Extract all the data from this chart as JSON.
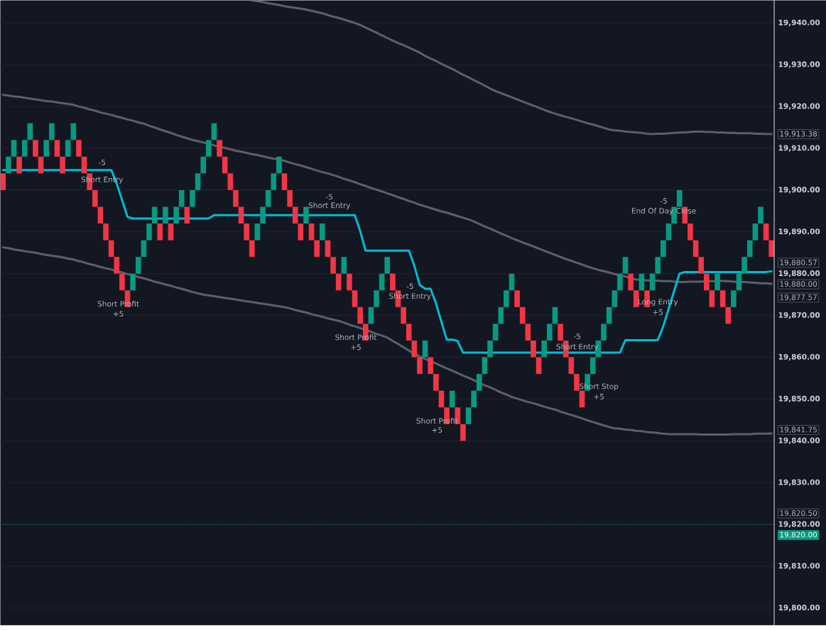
{
  "chart_data": {
    "type": "candlestick",
    "categories": [
      null,
      null,
      null,
      null,
      null,
      null,
      null,
      null,
      null,
      null,
      null,
      null,
      null,
      null,
      null,
      null,
      null,
      null,
      null,
      null,
      null,
      null,
      null,
      null,
      null,
      null,
      null,
      null,
      null,
      null,
      null,
      null,
      null,
      null,
      null,
      null,
      null,
      null,
      null,
      null,
      null,
      null,
      null,
      null,
      null,
      null,
      null,
      null,
      null,
      null,
      null,
      null,
      null,
      null,
      null,
      null,
      null,
      null,
      null,
      null,
      null,
      null,
      null,
      null,
      null,
      null,
      null,
      null,
      null,
      null,
      null,
      null,
      null,
      null,
      null,
      null,
      null,
      null,
      null,
      null,
      null,
      null,
      null,
      null,
      null,
      null,
      null,
      null,
      null,
      null,
      null,
      null,
      null,
      null,
      null,
      null,
      null,
      null,
      null,
      null,
      null,
      null,
      null,
      null,
      null,
      null,
      null,
      null,
      null,
      null,
      null,
      null,
      null,
      null,
      null,
      null,
      null,
      null,
      null,
      null,
      null,
      null,
      null,
      null,
      null,
      null,
      null,
      null,
      null,
      null,
      null,
      null,
      null,
      null,
      null,
      null,
      null,
      null,
      null,
      null,
      null,
      null,
      null
    ],
    "ohlc": [
      [
        19904,
        19904,
        19900,
        19900
      ],
      [
        19904,
        19908,
        19904,
        19908
      ],
      [
        19908,
        19912,
        19908,
        19912
      ],
      [
        19908,
        19908,
        19904,
        19904
      ],
      [
        19908,
        19912,
        19908,
        19912
      ],
      [
        19912,
        19916,
        19912,
        19916
      ],
      [
        19912,
        19912,
        19908,
        19908
      ],
      [
        19908,
        19908,
        19904,
        19904
      ],
      [
        19908,
        19912,
        19908,
        19912
      ],
      [
        19912,
        19916,
        19912,
        19916
      ],
      [
        19912,
        19912,
        19908,
        19908
      ],
      [
        19908,
        19908,
        19904,
        19904
      ],
      [
        19908,
        19912,
        19908,
        19912
      ],
      [
        19912,
        19916,
        19912,
        19916
      ],
      [
        19912,
        19912,
        19908,
        19908
      ],
      [
        19908,
        19908,
        19904,
        19904
      ],
      [
        19904,
        19904,
        19900,
        19900
      ],
      [
        19900,
        19900,
        19896,
        19896
      ],
      [
        19896,
        19896,
        19892,
        19892
      ],
      [
        19892,
        19892,
        19888,
        19888
      ],
      [
        19888,
        19888,
        19884,
        19884
      ],
      [
        19884,
        19884,
        19880,
        19880
      ],
      [
        19880,
        19880,
        19876,
        19876
      ],
      [
        19876,
        19876,
        19872,
        19872
      ],
      [
        19876,
        19880,
        19876,
        19880
      ],
      [
        19880,
        19884,
        19880,
        19884
      ],
      [
        19884,
        19888,
        19884,
        19888
      ],
      [
        19888,
        19892,
        19888,
        19892
      ],
      [
        19892,
        19896,
        19892,
        19896
      ],
      [
        19892,
        19892,
        19888,
        19888
      ],
      [
        19892,
        19896,
        19892,
        19896
      ],
      [
        19892,
        19892,
        19888,
        19888
      ],
      [
        19892,
        19896,
        19892,
        19896
      ],
      [
        19896,
        19900,
        19896,
        19900
      ],
      [
        19896,
        19896,
        19892,
        19892
      ],
      [
        19896,
        19900,
        19896,
        19900
      ],
      [
        19900,
        19904,
        19900,
        19904
      ],
      [
        19904,
        19908,
        19904,
        19908
      ],
      [
        19908,
        19912,
        19908,
        19912
      ],
      [
        19912,
        19916,
        19912,
        19916
      ],
      [
        19912,
        19912,
        19908,
        19908
      ],
      [
        19908,
        19908,
        19904,
        19904
      ],
      [
        19904,
        19904,
        19900,
        19900
      ],
      [
        19900,
        19900,
        19896,
        19896
      ],
      [
        19896,
        19896,
        19892,
        19892
      ],
      [
        19892,
        19892,
        19888,
        19888
      ],
      [
        19888,
        19888,
        19884,
        19884
      ],
      [
        19888,
        19892,
        19888,
        19892
      ],
      [
        19892,
        19896,
        19892,
        19896
      ],
      [
        19896,
        19900,
        19896,
        19900
      ],
      [
        19900,
        19904,
        19900,
        19904
      ],
      [
        19904,
        19908,
        19904,
        19908
      ],
      [
        19904,
        19904,
        19900,
        19900
      ],
      [
        19900,
        19900,
        19896,
        19896
      ],
      [
        19896,
        19896,
        19892,
        19892
      ],
      [
        19892,
        19892,
        19888,
        19888
      ],
      [
        19892,
        19896,
        19892,
        19896
      ],
      [
        19892,
        19892,
        19888,
        19888
      ],
      [
        19888,
        19888,
        19884,
        19884
      ],
      [
        19888,
        19892,
        19888,
        19892
      ],
      [
        19888,
        19888,
        19884,
        19884
      ],
      [
        19884,
        19884,
        19880,
        19880
      ],
      [
        19880,
        19880,
        19876,
        19876
      ],
      [
        19880,
        19884,
        19880,
        19884
      ],
      [
        19880,
        19880,
        19876,
        19876
      ],
      [
        19876,
        19876,
        19872,
        19872
      ],
      [
        19872,
        19872,
        19868,
        19868
      ],
      [
        19868,
        19868,
        19864,
        19864
      ],
      [
        19868,
        19872,
        19868,
        19872
      ],
      [
        19872,
        19876,
        19872,
        19876
      ],
      [
        19876,
        19880,
        19876,
        19880
      ],
      [
        19880,
        19884,
        19880,
        19884
      ],
      [
        19880,
        19880,
        19876,
        19876
      ],
      [
        19876,
        19876,
        19872,
        19872
      ],
      [
        19872,
        19872,
        19868,
        19868
      ],
      [
        19868,
        19868,
        19864,
        19864
      ],
      [
        19864,
        19864,
        19860,
        19860
      ],
      [
        19860,
        19860,
        19856,
        19856
      ],
      [
        19860,
        19864,
        19860,
        19864
      ],
      [
        19860,
        19860,
        19856,
        19856
      ],
      [
        19856,
        19856,
        19852,
        19852
      ],
      [
        19852,
        19852,
        19848,
        19848
      ],
      [
        19848,
        19848,
        19844,
        19844
      ],
      [
        19848,
        19852,
        19848,
        19852
      ],
      [
        19848,
        19848,
        19844,
        19844
      ],
      [
        19844,
        19844,
        19840,
        19840
      ],
      [
        19844,
        19848,
        19844,
        19848
      ],
      [
        19848,
        19852,
        19848,
        19852
      ],
      [
        19852,
        19856,
        19852,
        19856
      ],
      [
        19856,
        19860,
        19856,
        19860
      ],
      [
        19860,
        19864,
        19860,
        19864
      ],
      [
        19864,
        19868,
        19864,
        19868
      ],
      [
        19868,
        19872,
        19868,
        19872
      ],
      [
        19872,
        19876,
        19872,
        19876
      ],
      [
        19876,
        19880,
        19876,
        19880
      ],
      [
        19876,
        19876,
        19872,
        19872
      ],
      [
        19872,
        19872,
        19868,
        19868
      ],
      [
        19868,
        19868,
        19864,
        19864
      ],
      [
        19864,
        19864,
        19860,
        19860
      ],
      [
        19860,
        19860,
        19856,
        19856
      ],
      [
        19860,
        19864,
        19860,
        19864
      ],
      [
        19864,
        19868,
        19864,
        19868
      ],
      [
        19868,
        19872,
        19868,
        19872
      ],
      [
        19868,
        19868,
        19864,
        19864
      ],
      [
        19864,
        19864,
        19860,
        19860
      ],
      [
        19860,
        19860,
        19856,
        19856
      ],
      [
        19856,
        19856,
        19852,
        19852
      ],
      [
        19852,
        19852,
        19848,
        19848
      ],
      [
        19852,
        19856,
        19852,
        19856
      ],
      [
        19856,
        19860,
        19856,
        19860
      ],
      [
        19860,
        19864,
        19860,
        19864
      ],
      [
        19864,
        19868,
        19864,
        19868
      ],
      [
        19868,
        19872,
        19868,
        19872
      ],
      [
        19872,
        19876,
        19872,
        19876
      ],
      [
        19876,
        19880,
        19876,
        19880
      ],
      [
        19880,
        19884,
        19880,
        19884
      ],
      [
        19880,
        19880,
        19876,
        19876
      ],
      [
        19876,
        19876,
        19872,
        19872
      ],
      [
        19876,
        19880,
        19876,
        19880
      ],
      [
        19876,
        19876,
        19872,
        19872
      ],
      [
        19876,
        19880,
        19876,
        19880
      ],
      [
        19880,
        19884,
        19880,
        19884
      ],
      [
        19884,
        19888,
        19884,
        19888
      ],
      [
        19888,
        19892,
        19888,
        19892
      ],
      [
        19892,
        19896,
        19892,
        19896
      ],
      [
        19896,
        19900,
        19896,
        19900
      ],
      [
        19896,
        19896,
        19892,
        19892
      ],
      [
        19892,
        19892,
        19888,
        19888
      ],
      [
        19888,
        19888,
        19884,
        19884
      ],
      [
        19884,
        19884,
        19880,
        19880
      ],
      [
        19880,
        19880,
        19876,
        19876
      ],
      [
        19876,
        19876,
        19872,
        19872
      ],
      [
        19876,
        19880,
        19876,
        19880
      ],
      [
        19876,
        19876,
        19872,
        19872
      ],
      [
        19872,
        19872,
        19868,
        19868
      ],
      [
        19872,
        19876,
        19872,
        19876
      ],
      [
        19876,
        19880,
        19876,
        19880
      ],
      [
        19880,
        19884,
        19880,
        19884
      ],
      [
        19884,
        19888,
        19884,
        19888
      ],
      [
        19888,
        19892,
        19888,
        19892
      ],
      [
        19892,
        19896,
        19892,
        19896
      ],
      [
        19892,
        19892,
        19888,
        19888
      ],
      [
        19888,
        19888,
        19884,
        19884
      ]
    ],
    "colors": [
      "#f23645",
      "#089981",
      "#089981",
      "#f23645",
      "#089981",
      "#089981",
      "#f23645",
      "#f23645",
      "#089981",
      "#089981",
      "#f23645",
      "#f23645",
      "#089981",
      "#089981",
      "#f23645",
      "#f23645",
      "#f23645",
      "#f23645",
      "#f23645",
      "#f23645",
      "#f23645",
      "#f23645",
      "#f23645",
      "#f23645",
      "#089981",
      "#089981",
      "#089981",
      "#089981",
      "#089981",
      "#f23645",
      "#089981",
      "#f23645",
      "#089981",
      "#089981",
      "#f23645",
      "#089981",
      "#089981",
      "#089981",
      "#089981",
      "#089981",
      "#f23645",
      "#f23645",
      "#f23645",
      "#f23645",
      "#f23645",
      "#f23645",
      "#f23645",
      "#089981",
      "#089981",
      "#089981",
      "#089981",
      "#089981",
      "#f23645",
      "#f23645",
      "#f23645",
      "#f23645",
      "#089981",
      "#f23645",
      "#f23645",
      "#089981",
      "#f23645",
      "#f23645",
      "#f23645",
      "#089981",
      "#f23645",
      "#f23645",
      "#f23645",
      "#f23645",
      "#089981",
      "#089981",
      "#089981",
      "#089981",
      "#f23645",
      "#f23645",
      "#f23645",
      "#f23645",
      "#f23645",
      "#f23645",
      "#089981",
      "#f23645",
      "#f23645",
      "#f23645",
      "#f23645",
      "#089981",
      "#f23645",
      "#f23645",
      "#089981",
      "#089981",
      "#089981",
      "#089981",
      "#089981",
      "#089981",
      "#089981",
      "#089981",
      "#089981",
      "#f23645",
      "#f23645",
      "#f23645",
      "#f23645",
      "#f23645",
      "#089981",
      "#089981",
      "#089981",
      "#f23645",
      "#f23645",
      "#f23645",
      "#f23645",
      "#f23645",
      "#089981",
      "#089981",
      "#089981",
      "#089981",
      "#089981",
      "#089981",
      "#089981",
      "#089981",
      "#f23645",
      "#f23645",
      "#089981",
      "#f23645",
      "#089981",
      "#089981",
      "#089981",
      "#089981",
      "#089981",
      "#089981",
      "#f23645",
      "#f23645",
      "#f23645",
      "#f23645",
      "#f23645",
      "#f23645",
      "#089981",
      "#f23645",
      "#f23645",
      "#089981",
      "#089981",
      "#089981",
      "#089981",
      "#089981",
      "#089981",
      "#f23645",
      "#f23645"
    ],
    "series": [
      {
        "type": "line",
        "color": "#5d606b",
        "values": [
          null,
          null,
          null,
          null,
          null,
          null,
          null,
          null,
          null,
          null,
          null,
          null,
          null,
          null,
          null,
          null,
          null,
          null,
          null,
          null,
          null,
          null,
          null,
          null,
          null,
          null,
          null,
          null,
          null,
          null,
          null,
          null,
          null,
          null,
          null,
          null,
          null,
          null,
          null,
          null,
          null,
          null,
          null,
          null,
          null,
          null,
          19945.4,
          19945.2,
          19945.0,
          19944.7,
          19944.5,
          19944.3,
          19944.0,
          19943.8,
          19943.6,
          19943.4,
          19943.2,
          19942.9,
          19942.6,
          19942.3,
          19941.9,
          19941.5,
          19941.2,
          19940.8,
          19940.4,
          19940.0,
          19939.5,
          19938.9,
          19938.3,
          19937.7,
          19937.0,
          19936.4,
          19935.8,
          19935.2,
          19934.7,
          19934.1,
          19933.5,
          19932.9,
          19932.1,
          19931.5,
          19930.9,
          19930.2,
          19929.6,
          19929.0,
          19928.3,
          19927.6,
          19927.0,
          19926.3,
          19925.7,
          19925.0,
          19924.3,
          19923.7,
          19923.2,
          19922.7,
          19922.2,
          19921.7,
          19921.2,
          19920.7,
          19920.2,
          19919.7,
          19919.2,
          19918.7,
          19918.3,
          19917.9,
          19917.5,
          19917.2,
          19916.8,
          19916.4,
          19916.0,
          19915.7,
          19915.3,
          19914.9,
          19914.5,
          19914.3,
          19914.2,
          19914.0,
          19913.9,
          19913.8,
          19913.7,
          19913.5,
          19913.4,
          19913.5,
          19913.5,
          19913.6,
          19913.7,
          19913.8,
          19913.8,
          19913.9,
          19914.0,
          19914.0,
          19913.9,
          19913.9,
          19913.8,
          19913.8,
          19913.7,
          19913.7,
          19913.6,
          19913.6,
          19913.6,
          19913.5,
          19913.5,
          19913.4,
          19913.38
        ]
      },
      {
        "type": "line",
        "color": "#5d606b",
        "values": [
          19922.8,
          19922.6,
          19922.4,
          19922.3,
          19922.1,
          19921.9,
          19921.7,
          19921.5,
          19921.3,
          19921.2,
          19921.0,
          19920.8,
          19920.6,
          19920.4,
          19920.0,
          19919.7,
          19919.3,
          19919.0,
          19918.6,
          19918.3,
          19918.0,
          19917.6,
          19917.3,
          19916.9,
          19916.6,
          19916.2,
          19915.9,
          19915.4,
          19915.0,
          19914.5,
          19914.1,
          19913.7,
          19913.2,
          19912.8,
          19912.4,
          19912.0,
          19911.7,
          19911.4,
          19911.1,
          19910.7,
          19910.4,
          19910.1,
          19909.8,
          19909.4,
          19909.2,
          19908.9,
          19908.6,
          19908.4,
          19908.1,
          19907.8,
          19907.5,
          19907.3,
          19907.0,
          19906.6,
          19906.2,
          19905.9,
          19905.5,
          19905.1,
          19904.7,
          19904.3,
          19904.0,
          19903.6,
          19903.2,
          19902.7,
          19902.3,
          19901.9,
          19901.4,
          19901.0,
          19900.5,
          19900.1,
          19899.7,
          19899.2,
          19898.8,
          19898.3,
          19897.9,
          19897.4,
          19897.0,
          19896.5,
          19896.1,
          19895.7,
          19895.3,
          19894.9,
          19894.6,
          19894.2,
          19893.8,
          19893.4,
          19893.0,
          19892.5,
          19891.9,
          19891.3,
          19890.8,
          19890.2,
          19889.6,
          19889.1,
          19888.5,
          19888.0,
          19887.5,
          19887.0,
          19886.5,
          19886.0,
          19885.5,
          19885.0,
          19884.5,
          19884.0,
          19883.5,
          19883.1,
          19882.6,
          19882.2,
          19881.7,
          19881.3,
          19880.9,
          19880.6,
          19880.3,
          19879.9,
          19879.6,
          19879.3,
          19879.0,
          19878.6,
          19878.5,
          19878.4,
          19878.3,
          19878.3,
          19878.2,
          19878.2,
          19878.1,
          19878.0,
          19878.0,
          19878.1,
          19878.1,
          19878.1,
          19878.2,
          19878.2,
          19878.2,
          19878.3,
          19878.2,
          19878.1,
          19878.0,
          19878.0,
          19877.9,
          19877.8,
          19877.7,
          19877.7,
          19877.57
        ]
      },
      {
        "type": "line",
        "color": "#5d606b",
        "values": [
          19886.3,
          19886.1,
          19885.8,
          19885.6,
          19885.4,
          19885.2,
          19885.0,
          19884.7,
          19884.5,
          19884.3,
          19884.1,
          19883.9,
          19883.6,
          19883.4,
          19883.0,
          19882.7,
          19882.3,
          19882.0,
          19881.6,
          19881.3,
          19881.0,
          19880.6,
          19880.3,
          19879.9,
          19879.6,
          19879.2,
          19878.9,
          19878.5,
          19878.1,
          19877.8,
          19877.4,
          19877.1,
          19876.7,
          19876.4,
          19876.0,
          19875.6,
          19875.3,
          19875.0,
          19874.8,
          19874.6,
          19874.4,
          19874.2,
          19874.0,
          19873.8,
          19873.6,
          19873.4,
          19873.2,
          19873.0,
          19872.8,
          19872.6,
          19872.4,
          19872.2,
          19872.0,
          19871.7,
          19871.3,
          19871.0,
          19870.7,
          19870.3,
          19870.0,
          19869.7,
          19869.3,
          19869.0,
          19868.7,
          19868.3,
          19867.8,
          19867.4,
          19867.0,
          19866.5,
          19866.1,
          19865.6,
          19865.2,
          19864.7,
          19863.9,
          19863.2,
          19862.4,
          19861.6,
          19860.8,
          19860.2,
          19859.6,
          19859.1,
          19858.5,
          19857.9,
          19857.3,
          19856.8,
          19856.2,
          19855.6,
          19855.1,
          19854.5,
          19853.9,
          19853.3,
          19852.8,
          19852.2,
          19851.6,
          19851.1,
          19850.5,
          19850.1,
          19849.7,
          19849.3,
          19849.0,
          19848.6,
          19848.2,
          19847.8,
          19847.5,
          19847.0,
          19846.6,
          19846.2,
          19845.8,
          19845.4,
          19844.9,
          19844.5,
          19844.1,
          19843.7,
          19843.3,
          19843.0,
          19842.9,
          19842.7,
          19842.6,
          19842.4,
          19842.3,
          19842.1,
          19842.0,
          19841.9,
          19841.7,
          19841.6,
          19841.6,
          19841.6,
          19841.6,
          19841.6,
          19841.6,
          19841.5,
          19841.5,
          19841.5,
          19841.5,
          19841.5,
          19841.5,
          19841.6,
          19841.6,
          19841.6,
          19841.6,
          19841.7,
          19841.7,
          19841.7,
          19841.75
        ]
      },
      {
        "type": "line",
        "color": "#00bcd4",
        "values": [
          19904.8,
          19904.8,
          19904.8,
          19904.8,
          19904.8,
          19904.8,
          19904.8,
          null,
          19904.8,
          19904.8,
          19904.8,
          19904.8,
          19904.8,
          19904.8,
          19904.8,
          null,
          19904.8,
          19904.8,
          19904.8,
          19904.8,
          19904.8,
          19901.6,
          19897.6,
          19893.6,
          19893.2,
          19893.2,
          19893.2,
          19893.2,
          19893.2,
          19893.2,
          19893.2,
          19893.2,
          19893.2,
          19893.2,
          19893.2,
          19893.2,
          19893.2,
          19893.2,
          19893.2,
          19894,
          19894,
          19894,
          19894,
          19894,
          19894,
          19894,
          19894,
          19894,
          19894,
          19894,
          19894,
          19894,
          19894,
          19894,
          19894,
          19894,
          19894,
          19894,
          19894,
          19894,
          19894,
          19894,
          19894,
          19894,
          19894,
          19894,
          19890.2,
          19885.5,
          19885.5,
          19885.5,
          19885.5,
          19885.5,
          19885.5,
          19885.5,
          19885.5,
          19885.5,
          19881.9,
          19877.3,
          19876.4,
          19876.4,
          19872.9,
          19868.5,
          19864.2,
          19864.2,
          19863.9,
          19861.1,
          19861.1,
          19861.1,
          19861.1,
          19861.1,
          19861.1,
          19861.1,
          19861.1,
          19861.1,
          19861.1,
          19861.1,
          19861.1,
          19861.1,
          19861.1,
          19861.1,
          19861.1,
          19861.1,
          19861.1,
          19861.1,
          19861.1,
          19861.1,
          19861.1,
          19861.1,
          19861.1,
          19861.1,
          19861.1,
          19861.1,
          19861.1,
          19861.1,
          19861.1,
          19864.1,
          19864.1,
          19864.1,
          19864.1,
          19864.1,
          19864.1,
          19864.1,
          19867.4,
          19871.6,
          19875.8,
          19880.0,
          19880.4,
          19880.4,
          19880.4,
          19880.4,
          19880.4,
          19880.4,
          19880.4,
          19880.4,
          19880.4,
          19880.4,
          19880.4,
          19880.4,
          19880.4,
          19880.4,
          19880.4,
          19880.4,
          19880.57
        ]
      }
    ],
    "ylim": [
      19795.9,
      19945.4
    ],
    "yticks": [
      {
        "value": 19800,
        "label": "19,800.00"
      },
      {
        "value": 19810,
        "label": "19,810.00"
      },
      {
        "value": 19820,
        "label": "19,820.00"
      },
      {
        "value": 19830,
        "label": "19,830.00"
      },
      {
        "value": 19840,
        "label": "19,840.00"
      },
      {
        "value": 19850,
        "label": "19,850.00"
      },
      {
        "value": 19860,
        "label": "19,860.00"
      },
      {
        "value": 19870,
        "label": "19,870.00"
      },
      {
        "value": 19880,
        "label": "19,880.00"
      },
      {
        "value": 19890,
        "label": "19,890.00"
      },
      {
        "value": 19900,
        "label": "19,900.00"
      },
      {
        "value": 19910,
        "label": "19,910.00"
      },
      {
        "value": 19920,
        "label": "19,920.00"
      },
      {
        "value": 19930,
        "label": "19,930.00"
      },
      {
        "value": 19940,
        "label": "19,940.00"
      }
    ],
    "tick_labels": "y",
    "grid": "y",
    "ref_lines": [
      {
        "axis": "y",
        "value": 19820,
        "label": "19,820.00",
        "color": "#089981",
        "line_style": "dotted"
      }
    ],
    "annotations": [
      "-5",
      "Short Entry",
      "Short Profit",
      "+5",
      "-5",
      "Short Entry",
      "Short Profit",
      "+5",
      "-5",
      "Short Entry",
      "Short Profit",
      "+5",
      "-5",
      "Short Entry",
      "Short Stop",
      "+5",
      "Long Entry",
      "+5",
      "-5",
      "End Of Day Close",
      "19,913.38",
      "19,880.57",
      "19,880.00",
      "19,877.57",
      "19,841.75",
      "19,820.50"
    ]
  }
}
